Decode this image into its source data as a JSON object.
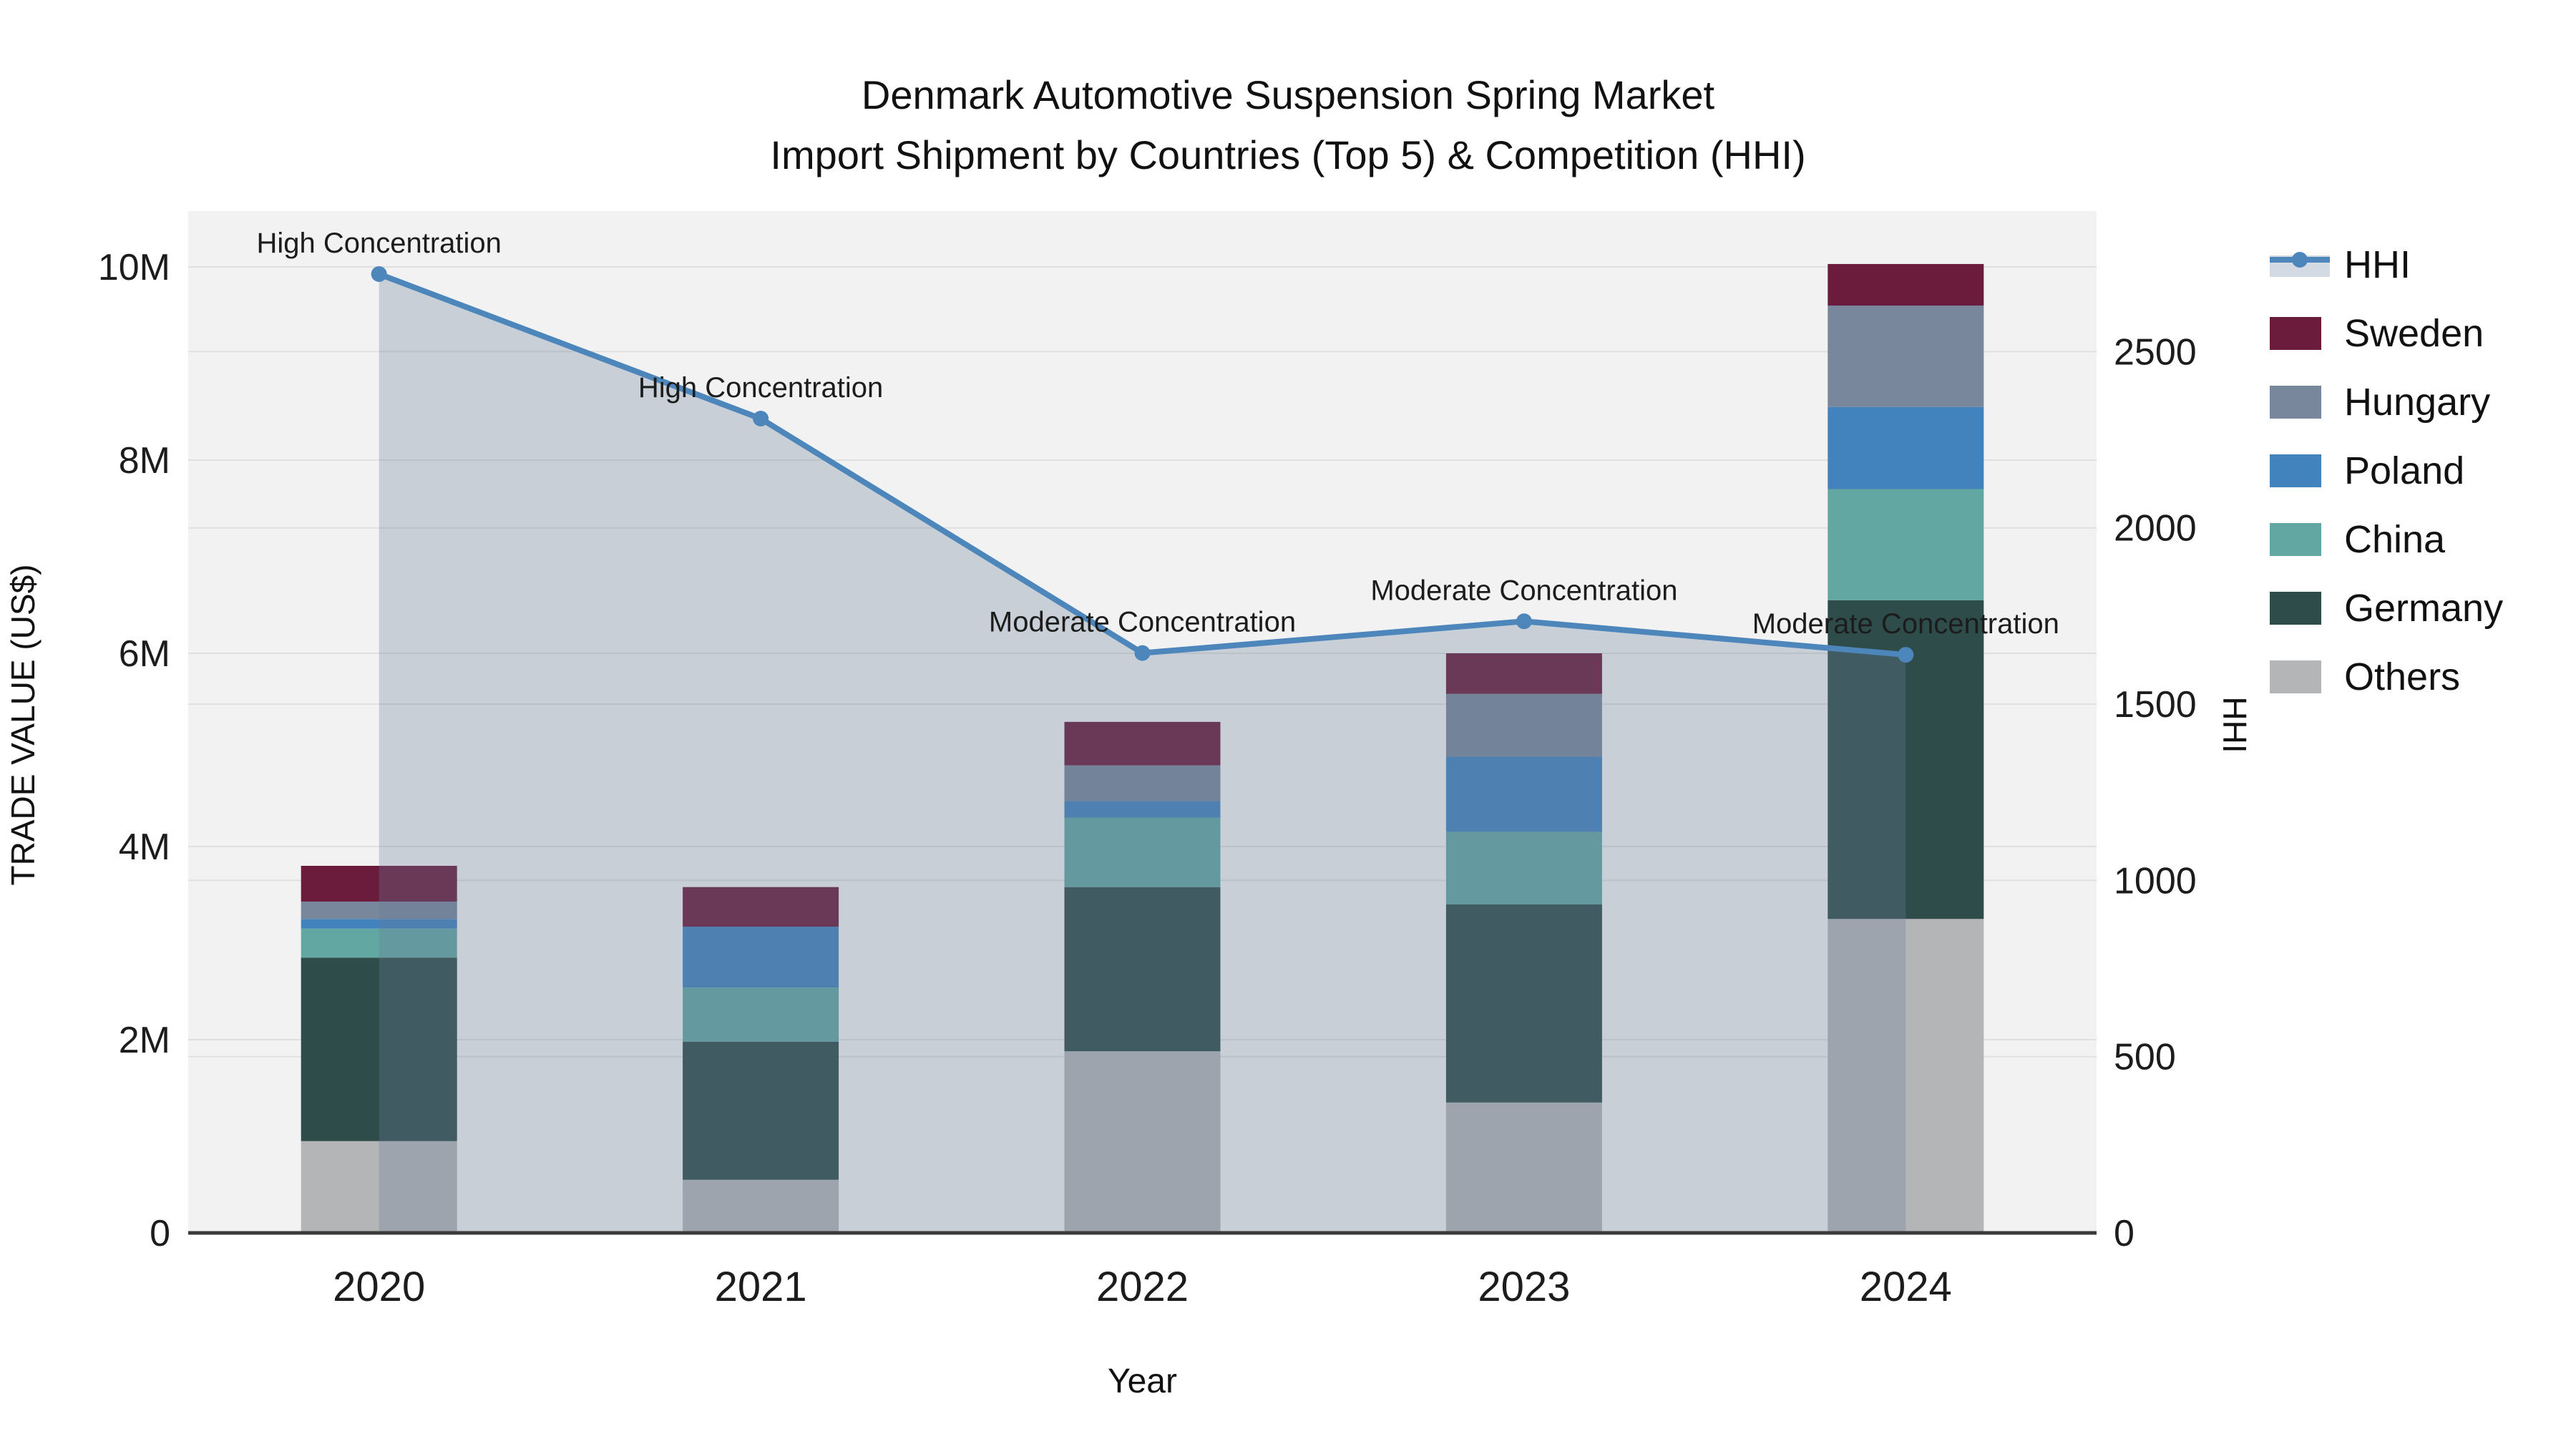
{
  "title": {
    "line1": "Denmark Automotive Suspension Spring Market",
    "line2": "Import Shipment by Countries (Top 5) & Competition (HHI)"
  },
  "chart_data": {
    "type": "combo",
    "subtype": "stacked-bar-with-line",
    "categories": [
      "2020",
      "2021",
      "2022",
      "2023",
      "2024"
    ],
    "xlabel": "Year",
    "left_axis": {
      "label": "TRADE VALUE (US$)",
      "tick_labels": [
        "0",
        "2M",
        "4M",
        "6M",
        "8M",
        "10M"
      ],
      "tick_values_musd": [
        0,
        2,
        4,
        6,
        8,
        10
      ],
      "ylim_musd": [
        0,
        10.6
      ]
    },
    "right_axis": {
      "label": "HHI",
      "tick_labels": [
        "0",
        "500",
        "1000",
        "1500",
        "2000",
        "2500"
      ],
      "tick_values": [
        0,
        500,
        1000,
        1500,
        2000,
        2500
      ],
      "ylim": [
        0,
        2900
      ]
    },
    "bar_series_bottom_to_top": [
      {
        "name": "Others",
        "color": "#b4b5b6",
        "values_musd": [
          0.95,
          0.55,
          1.88,
          1.35,
          3.25
        ]
      },
      {
        "name": "Germany",
        "color": "#2e4c49",
        "values_musd": [
          1.9,
          1.43,
          1.7,
          2.05,
          3.3
        ]
      },
      {
        "name": "China",
        "color": "#62a7a2",
        "values_musd": [
          0.3,
          0.56,
          0.72,
          0.75,
          1.15
        ]
      },
      {
        "name": "Poland",
        "color": "#4383bd",
        "values_musd": [
          0.1,
          0.63,
          0.17,
          0.78,
          0.85
        ]
      },
      {
        "name": "Hungary",
        "color": "#78879b",
        "values_musd": [
          0.18,
          0.0,
          0.37,
          0.65,
          1.05
        ]
      },
      {
        "name": "Sweden",
        "color": "#6b1c3d",
        "values_musd": [
          0.37,
          0.41,
          0.45,
          0.42,
          0.43
        ]
      }
    ],
    "bar_totals_musd": [
      3.8,
      3.58,
      5.29,
      6.0,
      10.03
    ],
    "line_series": {
      "name": "HHI",
      "color": "#4d86bb",
      "area_fill": "rgba(107,125,152,0.30)",
      "values": [
        2720,
        2310,
        1645,
        1735,
        1640
      ]
    },
    "annotations": [
      "High Concentration",
      "High Concentration",
      "Moderate Concentration",
      "Moderate Concentration",
      "Moderate Concentration"
    ],
    "legend": [
      {
        "label": "HHI",
        "type": "line"
      },
      {
        "label": "Sweden",
        "type": "patch",
        "color": "#6b1c3d"
      },
      {
        "label": "Hungary",
        "type": "patch",
        "color": "#78879b"
      },
      {
        "label": "Poland",
        "type": "patch",
        "color": "#4383bd"
      },
      {
        "label": "China",
        "type": "patch",
        "color": "#62a7a2"
      },
      {
        "label": "Germany",
        "type": "patch",
        "color": "#2e4c49"
      },
      {
        "label": "Others",
        "type": "patch",
        "color": "#b4b5b6"
      }
    ],
    "layout_hints": {
      "plot_bg": "#f2f2f2",
      "grid_color": "#e0e0e0",
      "axis_line_color": "#3a3a3a",
      "grid": "on",
      "legend_position": "right"
    }
  }
}
